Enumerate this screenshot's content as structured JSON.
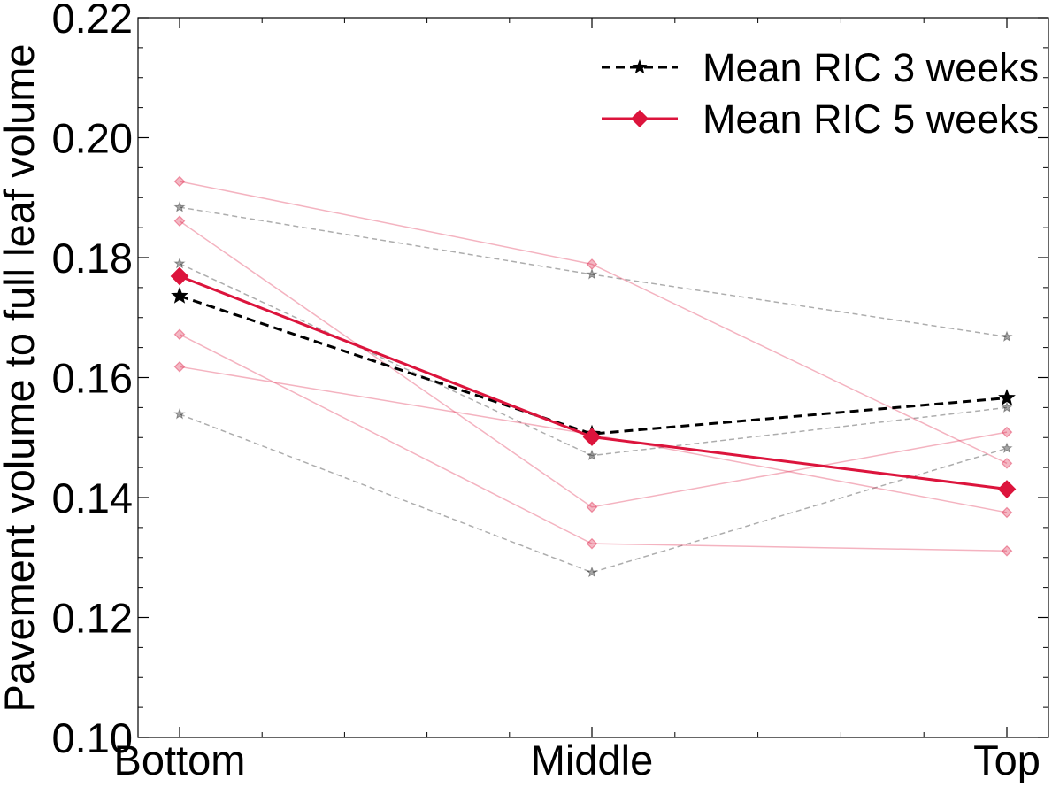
{
  "chart_data": {
    "type": "line",
    "categories": [
      "Bottom",
      "Middle",
      "Top"
    ],
    "ylabel": "Pavement volume to full leaf volume",
    "xlabel": "",
    "ylim": [
      0.1,
      0.22
    ],
    "yticks": [
      0.1,
      0.12,
      0.14,
      0.16,
      0.18,
      0.2,
      0.22
    ],
    "ytick_labels": [
      "0.10",
      "0.12",
      "0.14",
      "0.16",
      "0.18",
      "0.20",
      "0.22"
    ],
    "grid": false,
    "legend_position": "top-right",
    "colors": {
      "three_weeks": "#000000",
      "five_weeks": "#dc143c"
    },
    "series": [
      {
        "name": "Mean RIC 3 weeks",
        "group": "three_weeks",
        "kind": "mean",
        "marker": "star",
        "style": "dashed",
        "values": [
          0.1736,
          0.1506,
          0.1566
        ]
      },
      {
        "name": "Mean RIC 5 weeks",
        "group": "five_weeks",
        "kind": "mean",
        "marker": "diamond",
        "style": "solid",
        "values": [
          0.1769,
          0.1501,
          0.1414
        ]
      },
      {
        "group": "three_weeks",
        "kind": "individual",
        "marker": "star",
        "style": "dashed",
        "values": [
          0.1884,
          0.1772,
          0.1668
        ]
      },
      {
        "group": "three_weeks",
        "kind": "individual",
        "marker": "star",
        "style": "dashed",
        "values": [
          0.179,
          0.147,
          0.155
        ]
      },
      {
        "group": "three_weeks",
        "kind": "individual",
        "marker": "star",
        "style": "dashed",
        "values": [
          0.1539,
          0.1275,
          0.1482
        ]
      },
      {
        "group": "five_weeks",
        "kind": "individual",
        "marker": "diamond",
        "style": "solid",
        "values": [
          0.1927,
          0.1789,
          0.1457
        ]
      },
      {
        "group": "five_weeks",
        "kind": "individual",
        "marker": "diamond",
        "style": "solid",
        "values": [
          0.1861,
          0.1384,
          0.1509
        ]
      },
      {
        "group": "five_weeks",
        "kind": "individual",
        "marker": "diamond",
        "style": "solid",
        "values": [
          0.1672,
          0.1323,
          0.1311
        ]
      },
      {
        "group": "five_weeks",
        "kind": "individual",
        "marker": "diamond",
        "style": "solid",
        "values": [
          0.1618,
          0.1505,
          0.1375
        ]
      }
    ]
  }
}
